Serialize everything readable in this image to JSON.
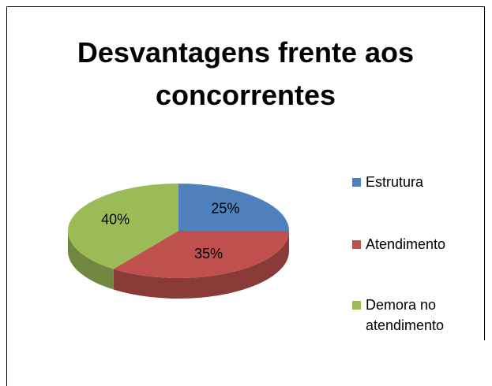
{
  "chart_data": {
    "type": "pie",
    "title": "Desvantagens frente aos concorrentes",
    "categories": [
      "Estrutura",
      "Atendimento",
      "Demora no atendimento"
    ],
    "values": [
      25,
      35,
      40
    ],
    "value_labels": [
      "25%",
      "35%",
      "40%"
    ],
    "colors": [
      "#4f81bd",
      "#c0504d",
      "#9bbb59"
    ],
    "legend": "right"
  }
}
